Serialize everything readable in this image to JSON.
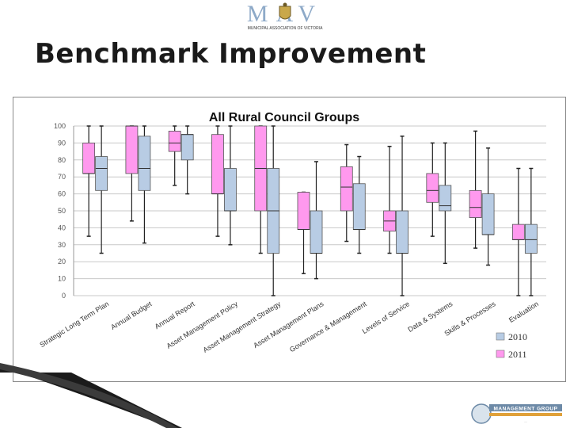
{
  "header": {
    "logo_main": "MAV",
    "logo_sub": "MUNICIPAL ASSOCIATION OF VICTORIA"
  },
  "slide": {
    "title": "Benchmark Improvement"
  },
  "footer": {
    "logo_main": "MANAGEMENT GROUP",
    "logo_sub": "..."
  },
  "colors": {
    "series_2010": "#b8cce4",
    "series_2011": "#ff99ee",
    "grid": "#c8c8c8",
    "whisker": "#222222"
  },
  "chart_data": {
    "type": "boxplot",
    "title": "All Rural Council Groups",
    "xlabel": "",
    "ylabel": "",
    "ylim": [
      0,
      100
    ],
    "yticks": [
      0,
      10,
      20,
      30,
      40,
      50,
      60,
      70,
      80,
      90,
      100
    ],
    "grid": true,
    "legend_position": "bottom-right",
    "categories": [
      "Strategic Long Term Plan",
      "Annual Budget",
      "Annual Report",
      "Asset Management Policy",
      "Asset Management Strategy",
      "Asset Management Plans",
      "Governance & Management",
      "Levels of Service",
      "Data & Systems",
      "Skills & Processes",
      "Evaluation"
    ],
    "series": [
      {
        "name": "2011",
        "color": "#ff99ee",
        "boxes": [
          {
            "min": 35,
            "q1": 72,
            "median": 72,
            "q3": 90,
            "max": 100
          },
          {
            "min": 44,
            "q1": 72,
            "median": 100,
            "q3": 100,
            "max": 100
          },
          {
            "min": 65,
            "q1": 85,
            "median": 90,
            "q3": 97,
            "max": 100
          },
          {
            "min": 35,
            "q1": 60,
            "median": 60,
            "q3": 95,
            "max": 100
          },
          {
            "min": 25,
            "q1": 50,
            "median": 75,
            "q3": 100,
            "max": 100
          },
          {
            "min": 13,
            "q1": 39,
            "median": 39,
            "q3": 61,
            "max": 61
          },
          {
            "min": 32,
            "q1": 50,
            "median": 64,
            "q3": 76,
            "max": 89
          },
          {
            "min": 25,
            "q1": 38,
            "median": 44,
            "q3": 50,
            "max": 88
          },
          {
            "min": 35,
            "q1": 55,
            "median": 62,
            "q3": 72,
            "max": 90
          },
          {
            "min": 28,
            "q1": 46,
            "median": 52,
            "q3": 62,
            "max": 97
          },
          {
            "min": 0,
            "q1": 33,
            "median": 33,
            "q3": 42,
            "max": 75
          }
        ]
      },
      {
        "name": "2010",
        "color": "#b8cce4",
        "boxes": [
          {
            "min": 25,
            "q1": 62,
            "median": 75,
            "q3": 82,
            "max": 100
          },
          {
            "min": 31,
            "q1": 62,
            "median": 75,
            "q3": 94,
            "max": 100
          },
          {
            "min": 60,
            "q1": 80,
            "median": 95,
            "q3": 95,
            "max": 100
          },
          {
            "min": 30,
            "q1": 50,
            "median": 50,
            "q3": 75,
            "max": 100
          },
          {
            "min": 0,
            "q1": 25,
            "median": 50,
            "q3": 75,
            "max": 100
          },
          {
            "min": 10,
            "q1": 25,
            "median": 25,
            "q3": 50,
            "max": 79
          },
          {
            "min": 25,
            "q1": 39,
            "median": 39,
            "q3": 66,
            "max": 82
          },
          {
            "min": 0,
            "q1": 25,
            "median": 25,
            "q3": 50,
            "max": 94
          },
          {
            "min": 19,
            "q1": 50,
            "median": 53,
            "q3": 65,
            "max": 90
          },
          {
            "min": 18,
            "q1": 36,
            "median": 36,
            "q3": 60,
            "max": 87
          },
          {
            "min": 0,
            "q1": 25,
            "median": 33,
            "q3": 42,
            "max": 75
          }
        ]
      }
    ]
  }
}
